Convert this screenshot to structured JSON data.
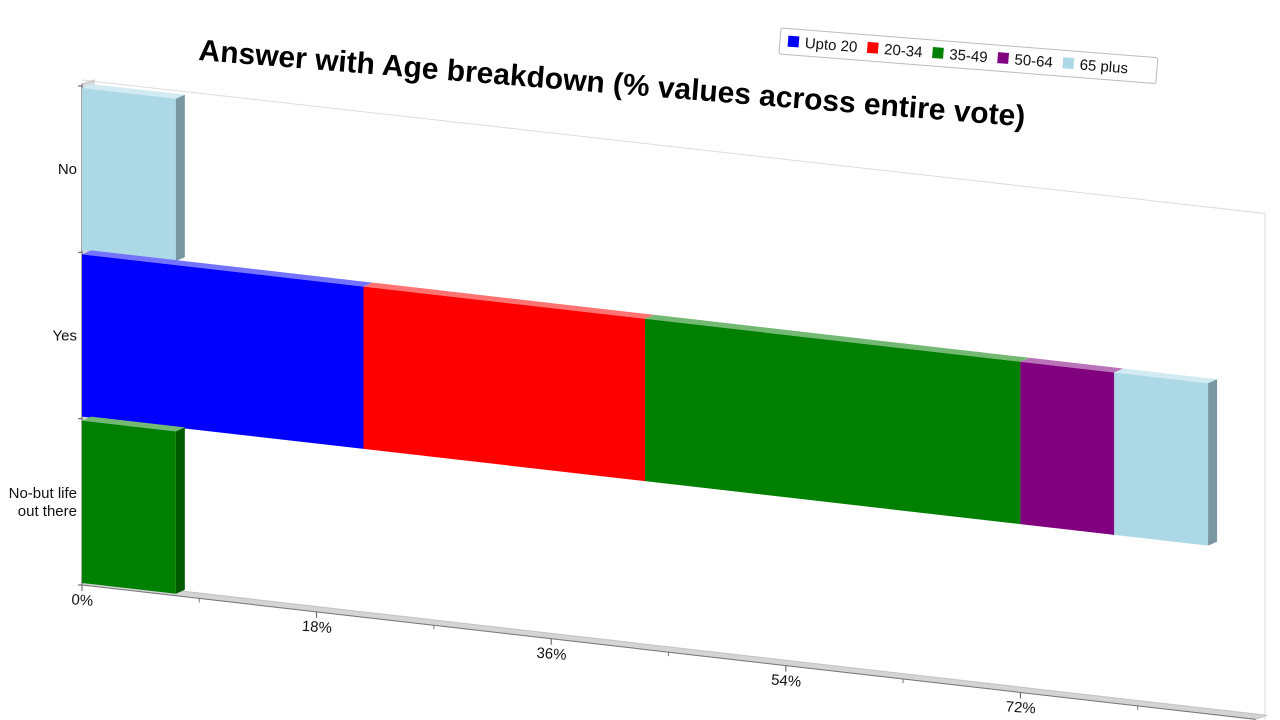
{
  "chart_data": {
    "type": "bar",
    "orientation": "horizontal",
    "stacked": true,
    "title": "Answer with Age breakdown (% values across entire vote)",
    "categories": [
      "No",
      "Yes",
      "No-but life out there"
    ],
    "category_lines": [
      [
        "No"
      ],
      [
        "Yes"
      ],
      [
        "No-but life",
        "out there"
      ]
    ],
    "series": [
      {
        "name": "Upto 20",
        "color": "#0000ff",
        "values": [
          0,
          21.6,
          0
        ]
      },
      {
        "name": "20-34",
        "color": "#ff0000",
        "values": [
          0,
          21.6,
          0
        ]
      },
      {
        "name": "35-49",
        "color": "#008000",
        "values": [
          0,
          28.8,
          7.2
        ]
      },
      {
        "name": "50-64",
        "color": "#800080",
        "values": [
          0,
          7.2,
          0
        ]
      },
      {
        "name": "65 plus",
        "color": "#add8e6",
        "values": [
          7.2,
          7.2,
          0
        ]
      }
    ],
    "xlim": [
      0,
      90
    ],
    "xticks": [
      0,
      18,
      36,
      54,
      72,
      90
    ],
    "xtick_labels": [
      "0%",
      "18%",
      "36%",
      "54%",
      "72%",
      "90%"
    ],
    "legend_position": "top-right",
    "grid": false
  }
}
